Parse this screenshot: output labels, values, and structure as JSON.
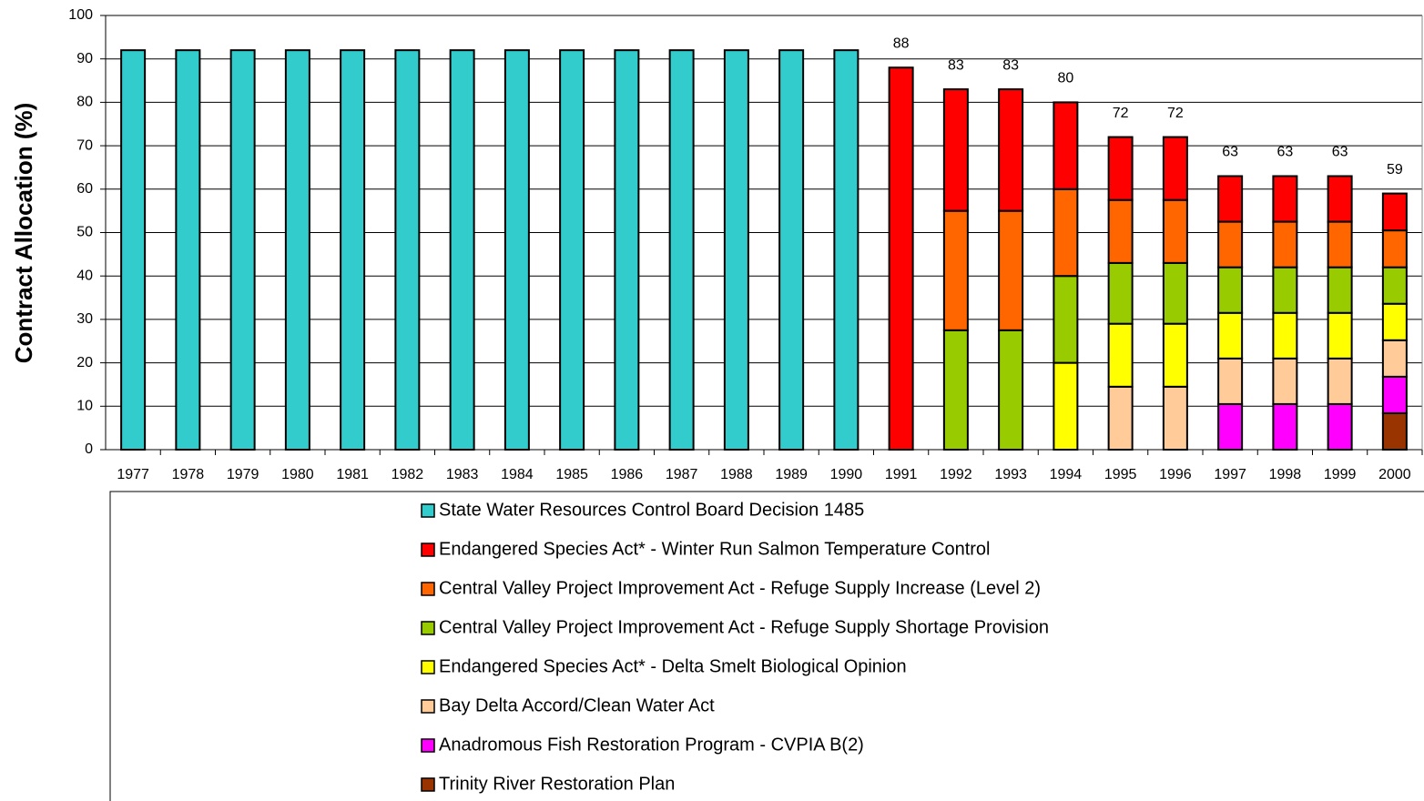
{
  "chart_data": {
    "type": "stacked_bar",
    "y_label": "Contract Allocation (%)",
    "categories": [
      "1977",
      "1978",
      "1979",
      "1980",
      "1981",
      "1982",
      "1983",
      "1984",
      "1985",
      "1986",
      "1987",
      "1988",
      "1989",
      "1990",
      "1991",
      "1992",
      "1993",
      "1994",
      "1995",
      "1996",
      "1997",
      "1998",
      "1999",
      "2000"
    ],
    "series": [
      {
        "name": "State Water Resources Control Board Decision 1485",
        "color": "#33CCCC",
        "values": [
          92,
          92,
          92,
          92,
          92,
          92,
          92,
          92,
          92,
          92,
          92,
          92,
          92,
          92,
          null,
          null,
          null,
          null,
          null,
          null,
          null,
          null,
          null,
          null
        ]
      },
      {
        "name": "Endangered Species Act* - Winter Run Salmon Temperature Control",
        "color": "#FF0000",
        "values": [
          null,
          null,
          null,
          null,
          null,
          null,
          null,
          null,
          null,
          null,
          null,
          null,
          null,
          null,
          88,
          28,
          28,
          20,
          14.5,
          14.5,
          10.5,
          10.5,
          10.5,
          8.5
        ]
      },
      {
        "name": "Central Valley Project Improvement Act - Refuge Supply Increase (Level 2)",
        "color": "#FF6600",
        "values": [
          null,
          null,
          null,
          null,
          null,
          null,
          null,
          null,
          null,
          null,
          null,
          null,
          null,
          null,
          null,
          27.5,
          27.5,
          20,
          14.5,
          14.5,
          10.5,
          10.5,
          10.5,
          8.5
        ]
      },
      {
        "name": "Central Valley Project Improvement Act - Refuge Supply Shortage Provision",
        "color": "#99CC00",
        "values": [
          null,
          null,
          null,
          null,
          null,
          null,
          null,
          null,
          null,
          null,
          null,
          null,
          null,
          null,
          null,
          27.5,
          27.5,
          20,
          14,
          14,
          10.5,
          10.5,
          10.5,
          8.4
        ]
      },
      {
        "name": "Endangered Species Act* - Delta Smelt Biological Opinion",
        "color": "#FFFF00",
        "values": [
          null,
          null,
          null,
          null,
          null,
          null,
          null,
          null,
          null,
          null,
          null,
          null,
          null,
          null,
          null,
          null,
          null,
          20,
          14.5,
          14.5,
          10.5,
          10.5,
          10.5,
          8.4
        ]
      },
      {
        "name": "Bay Delta Accord/Clean Water Act",
        "color": "#FFCC99",
        "values": [
          null,
          null,
          null,
          null,
          null,
          null,
          null,
          null,
          null,
          null,
          null,
          null,
          null,
          null,
          null,
          null,
          null,
          null,
          14.5,
          14.5,
          10.5,
          10.5,
          10.5,
          8.4
        ]
      },
      {
        "name": "Anadromous Fish Restoration Program - CVPIA B(2)",
        "color": "#FF00FF",
        "values": [
          null,
          null,
          null,
          null,
          null,
          null,
          null,
          null,
          null,
          null,
          null,
          null,
          null,
          null,
          null,
          null,
          null,
          null,
          null,
          null,
          10.5,
          10.5,
          10.5,
          8.4
        ]
      },
      {
        "name": "Trinity River Restoration Plan",
        "color": "#993300",
        "values": [
          null,
          null,
          null,
          null,
          null,
          null,
          null,
          null,
          null,
          null,
          null,
          null,
          null,
          null,
          null,
          null,
          null,
          null,
          null,
          null,
          null,
          null,
          null,
          8.4
        ]
      }
    ],
    "total_labels": [
      null,
      null,
      null,
      null,
      null,
      null,
      null,
      null,
      null,
      null,
      null,
      null,
      null,
      null,
      88,
      83,
      83,
      80,
      72,
      72,
      63,
      63,
      63,
      59
    ],
    "ylim": [
      0,
      100
    ],
    "yticks": [
      0,
      10,
      20,
      30,
      40,
      50,
      60,
      70,
      80,
      90,
      100
    ],
    "grid": true
  }
}
